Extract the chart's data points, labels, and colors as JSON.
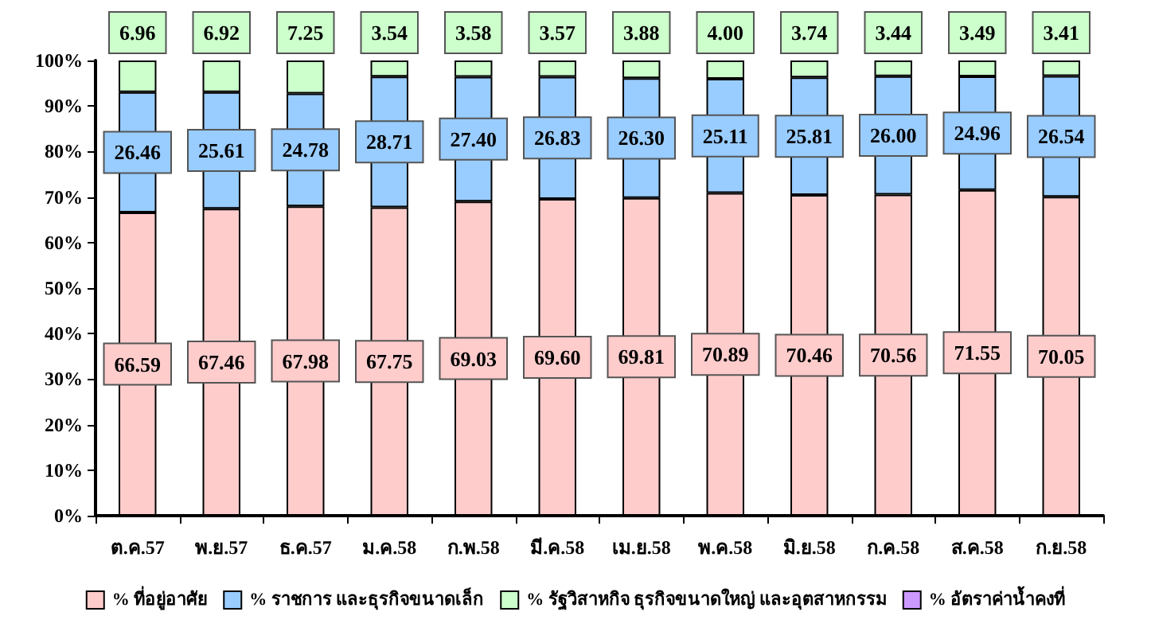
{
  "chart_data": {
    "type": "bar",
    "stacked": true,
    "categories": [
      "ต.ค.57",
      "พ.ย.57",
      "ธ.ค.57",
      "ม.ค.58",
      "ก.พ.58",
      "มี.ค.58",
      "เม.ย.58",
      "พ.ค.58",
      "มิ.ย.58",
      "ก.ค.58",
      "ส.ค.58",
      "ก.ย.58"
    ],
    "series": [
      {
        "name": "% ที่อยู่อาศัย",
        "color": "#ffcccc",
        "values": [
          66.59,
          67.46,
          67.98,
          67.75,
          69.03,
          69.6,
          69.81,
          70.89,
          70.46,
          70.56,
          71.55,
          70.05
        ],
        "value_labels": [
          "66.59",
          "67.46",
          "67.98",
          "67.75",
          "69.03",
          "69.60",
          "69.81",
          "70.89",
          "70.46",
          "70.56",
          "71.55",
          "70.05"
        ]
      },
      {
        "name": "% ราชการ และธุรกิจขนาดเล็ก",
        "color": "#99ccff",
        "values": [
          26.46,
          25.61,
          24.78,
          28.71,
          27.4,
          26.83,
          26.3,
          25.11,
          25.81,
          26.0,
          24.96,
          26.54
        ],
        "value_labels": [
          "26.46",
          "25.61",
          "24.78",
          "28.71",
          "27.40",
          "26.83",
          "26.30",
          "25.11",
          "25.81",
          "26.00",
          "24.96",
          "26.54"
        ]
      },
      {
        "name": "% รัฐวิสาหกิจ ธุรกิจขนาดใหญ่ และอุตสาหกรรม",
        "color": "#ccffcc",
        "values": [
          6.96,
          6.92,
          7.25,
          3.54,
          3.58,
          3.57,
          3.88,
          4.0,
          3.74,
          3.44,
          3.49,
          3.41
        ],
        "value_labels": [
          "6.96",
          "6.92",
          "7.25",
          "3.54",
          "3.58",
          "3.57",
          "3.88",
          "4.00",
          "3.74",
          "3.44",
          "3.49",
          "3.41"
        ]
      },
      {
        "name": "% อัตราค่าน้ำคงที่",
        "color": "#cc99ff",
        "values": [
          0,
          0,
          0,
          0,
          0,
          0,
          0,
          0,
          0,
          0,
          0,
          0
        ]
      }
    ],
    "ylim": [
      0,
      100
    ],
    "yticks": [
      {
        "value": 0,
        "label": "0%"
      },
      {
        "value": 10,
        "label": "10%"
      },
      {
        "value": 20,
        "label": "20%"
      },
      {
        "value": 30,
        "label": "30%"
      },
      {
        "value": 40,
        "label": "40%"
      },
      {
        "value": 50,
        "label": "50%"
      },
      {
        "value": 60,
        "label": "60%"
      },
      {
        "value": 70,
        "label": "70%"
      },
      {
        "value": 80,
        "label": "80%"
      },
      {
        "value": 90,
        "label": "90%"
      },
      {
        "value": 100,
        "label": "100%"
      }
    ],
    "grid": false,
    "legend": "bottom"
  }
}
